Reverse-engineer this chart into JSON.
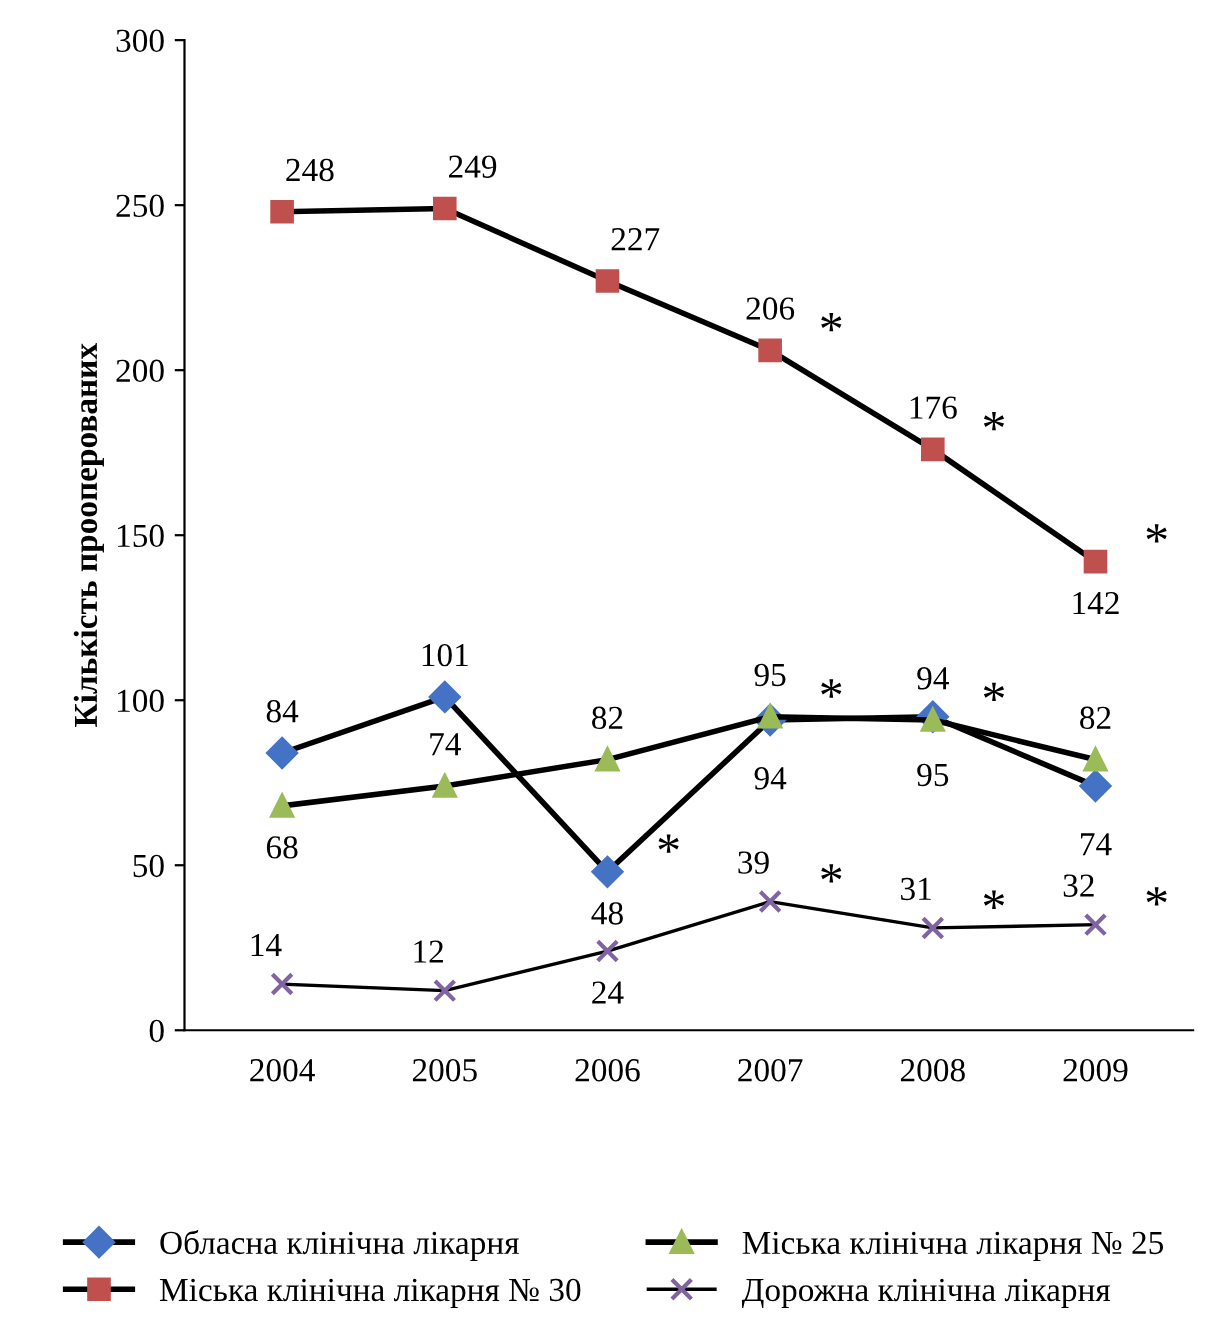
{
  "chart_data": {
    "type": "line",
    "ylabel": "Кількість прооперованих",
    "categories": [
      "2004",
      "2005",
      "2006",
      "2007",
      "2008",
      "2009"
    ],
    "ylim": [
      0,
      300
    ],
    "yticks": [
      0,
      50,
      100,
      150,
      200,
      250,
      300
    ],
    "grid": false,
    "legend": "bottom",
    "data_labels": true,
    "series": [
      {
        "name": "Обласна клінічна лікарня",
        "color": "#4472c4",
        "marker": "diamond",
        "values": [
          84,
          101,
          48,
          94,
          95,
          74
        ]
      },
      {
        "name": "Міська клінічна лікарня № 30",
        "color": "#c0504d",
        "marker": "square",
        "values": [
          248,
          249,
          227,
          206,
          176,
          142
        ]
      },
      {
        "name": "Міська клінічна лікарня № 25",
        "color": "#9bbb59",
        "marker": "triangle",
        "values": [
          68,
          74,
          82,
          95,
          94,
          82
        ]
      },
      {
        "name": "Дорожна клінічна лікарня",
        "color": "#8064a2",
        "marker": "cross",
        "values": [
          14,
          12,
          24,
          39,
          31,
          32
        ]
      }
    ],
    "annotations": [
      {
        "text": "*",
        "x": "2007",
        "y": 206
      },
      {
        "text": "*",
        "x": "2008",
        "y": 176
      },
      {
        "text": "*",
        "x": "2009",
        "y": 142
      },
      {
        "text": "*",
        "x": "2006",
        "y": 48
      },
      {
        "text": "*",
        "x": "2007",
        "y": 95
      },
      {
        "text": "*",
        "x": "2008",
        "y": 94
      },
      {
        "text": "*",
        "x": "2007",
        "y": 39
      },
      {
        "text": "*",
        "x": "2008",
        "y": 31
      },
      {
        "text": "*",
        "x": "2009",
        "y": 32
      }
    ]
  }
}
